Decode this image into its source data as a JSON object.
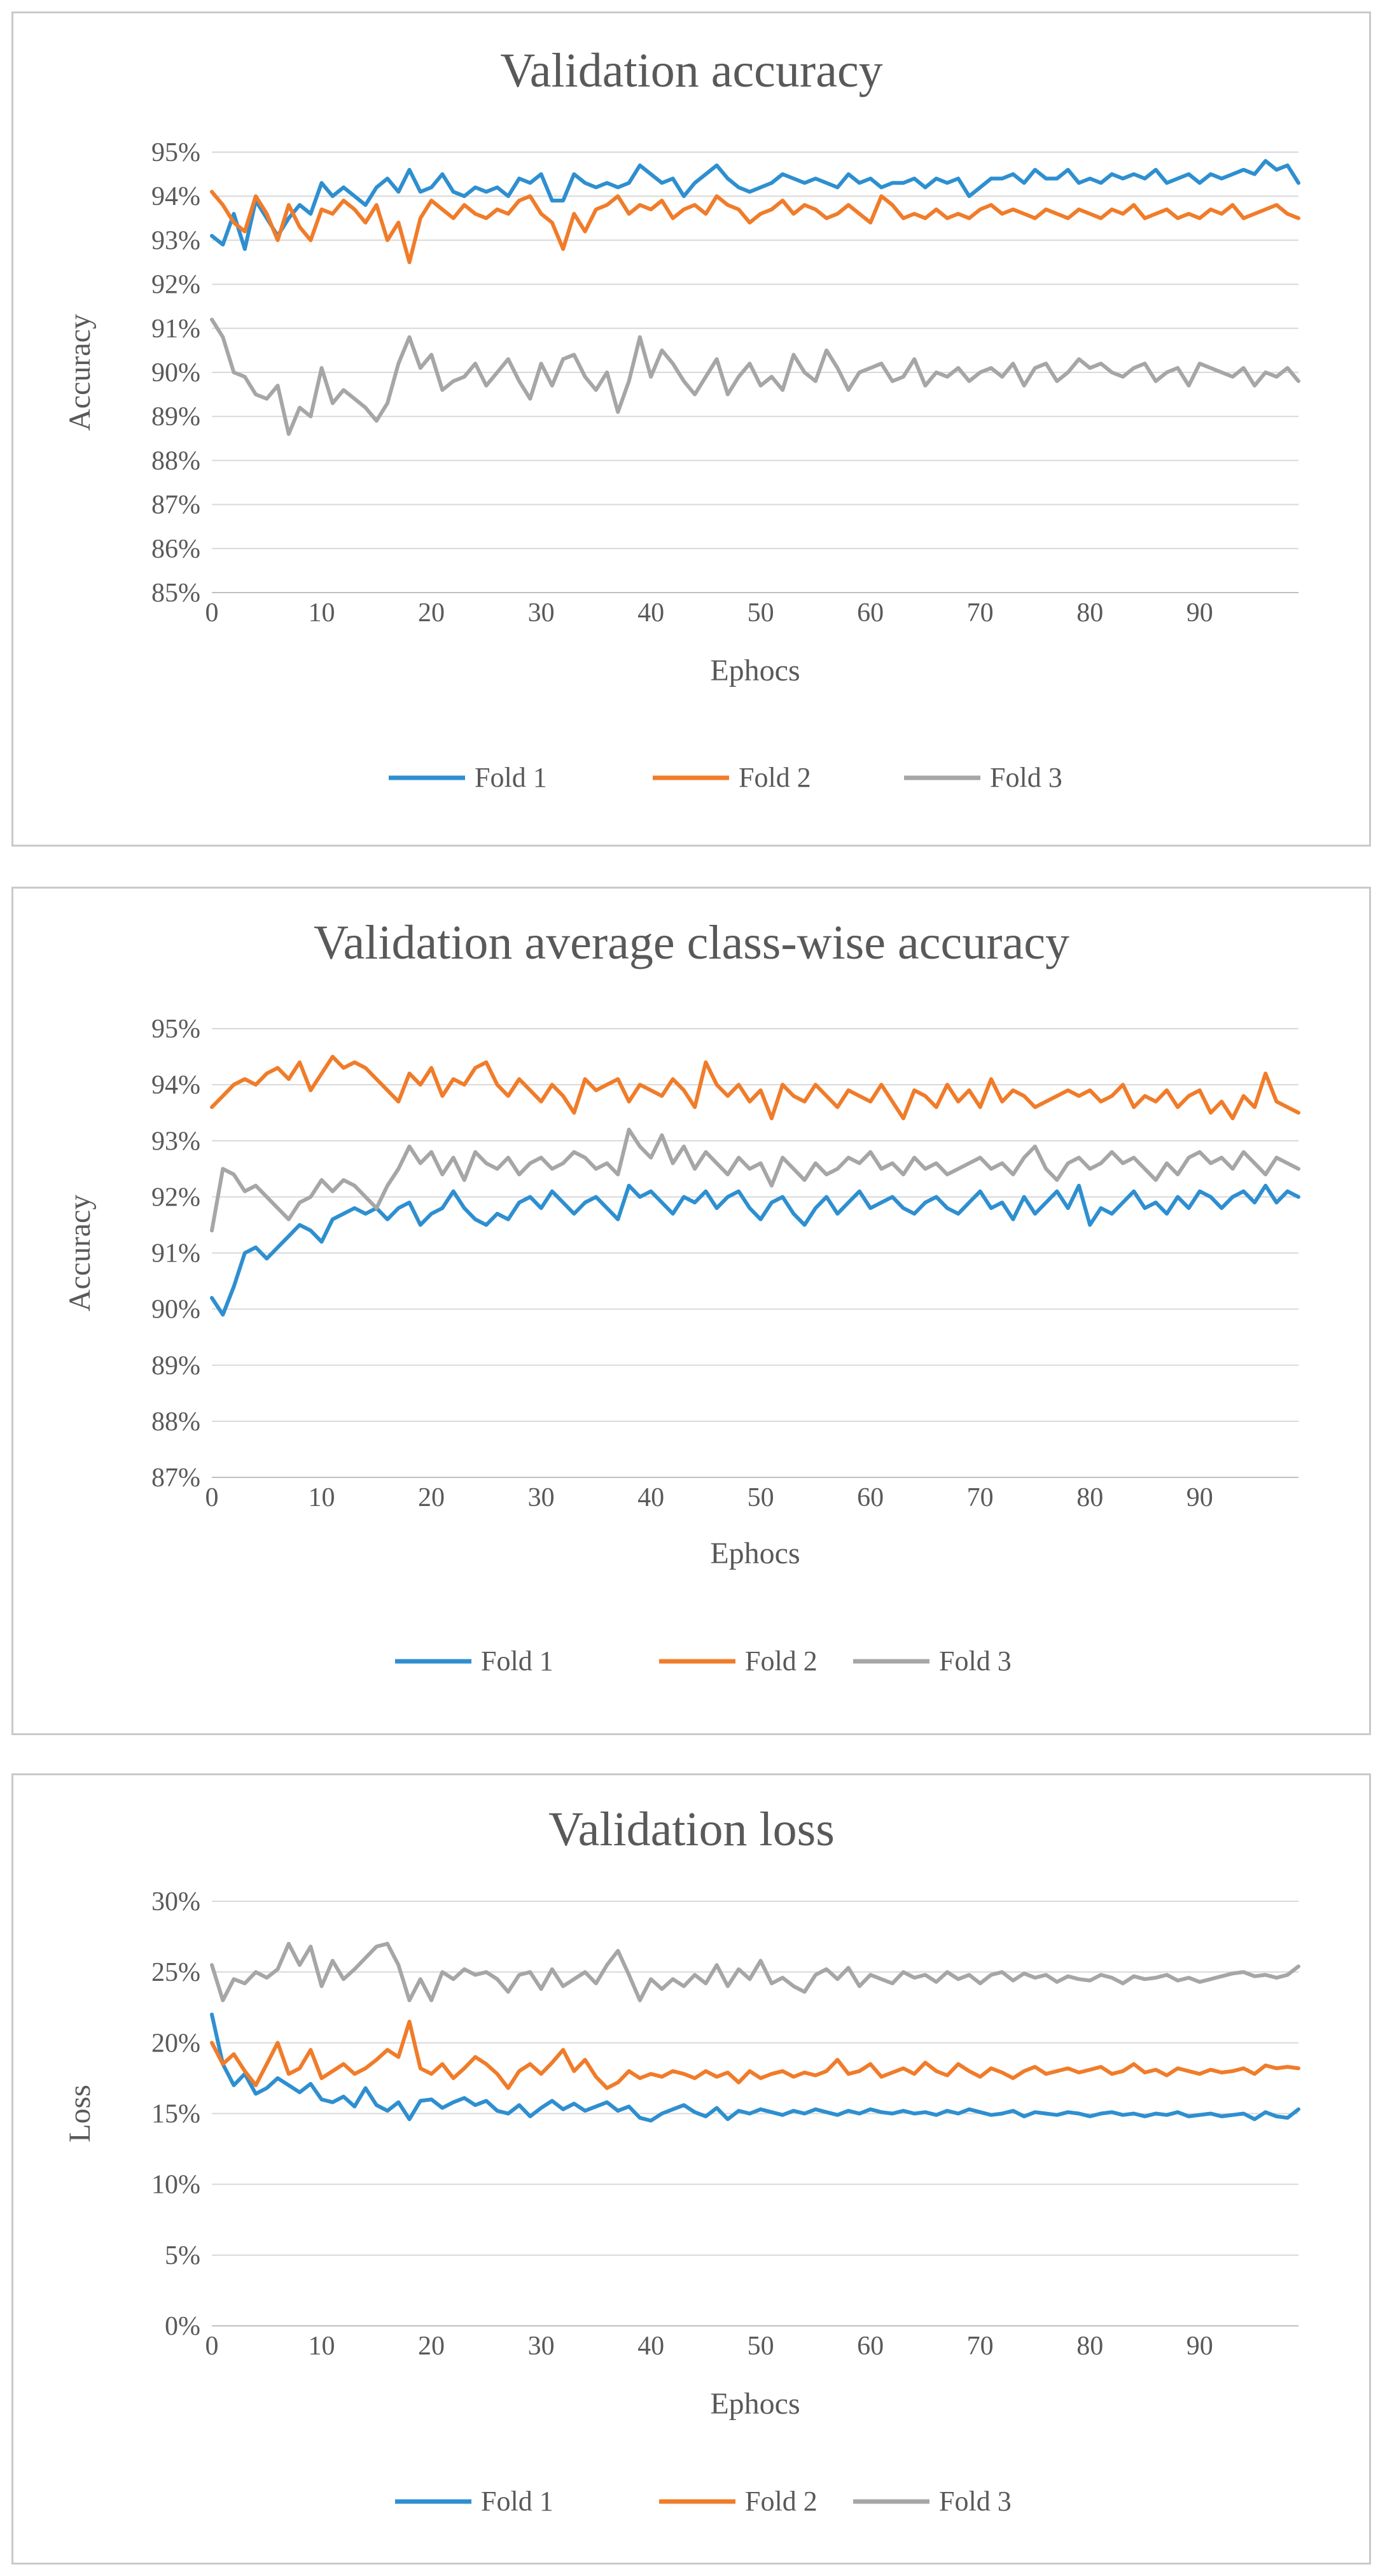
{
  "colors": {
    "fold1": "#2E8FD0",
    "fold2": "#F07C2A",
    "fold3": "#A6A6A6",
    "text": "#595959",
    "grid": "#d9d9d9"
  },
  "chart_data": [
    {
      "type": "line",
      "title": "Validation accuracy",
      "xlabel": "Ephocs",
      "ylabel": "Accuracy",
      "xlim": [
        0,
        99
      ],
      "ylim": [
        85,
        95
      ],
      "xticks": [
        "0",
        "10",
        "20",
        "30",
        "40",
        "50",
        "60",
        "70",
        "80",
        "90"
      ],
      "yticks": [
        "85%",
        "86%",
        "87%",
        "88%",
        "89%",
        "90%",
        "91%",
        "92%",
        "93%",
        "94%",
        "95%"
      ],
      "legend_position": "bottom",
      "series": [
        {
          "name": "Fold 1",
          "values": [
            93.1,
            92.9,
            93.6,
            92.8,
            93.9,
            93.5,
            93.1,
            93.5,
            93.8,
            93.6,
            94.3,
            94.0,
            94.2,
            94.0,
            93.8,
            94.2,
            94.4,
            94.1,
            94.6,
            94.1,
            94.2,
            94.5,
            94.1,
            94.0,
            94.2,
            94.1,
            94.2,
            94.0,
            94.4,
            94.3,
            94.5,
            93.9,
            93.9,
            94.5,
            94.3,
            94.2,
            94.3,
            94.2,
            94.3,
            94.7,
            94.5,
            94.3,
            94.4,
            94.0,
            94.3,
            94.5,
            94.7,
            94.4,
            94.2,
            94.1,
            94.2,
            94.3,
            94.5,
            94.4,
            94.3,
            94.4,
            94.3,
            94.2,
            94.5,
            94.3,
            94.4,
            94.2,
            94.3,
            94.3,
            94.4,
            94.2,
            94.4,
            94.3,
            94.4,
            94.0,
            94.2,
            94.4,
            94.4,
            94.5,
            94.3,
            94.6,
            94.4,
            94.4,
            94.6,
            94.3,
            94.4,
            94.3,
            94.5,
            94.4,
            94.5,
            94.4,
            94.6,
            94.3,
            94.4,
            94.5,
            94.3,
            94.5,
            94.4,
            94.5,
            94.6,
            94.5,
            94.8,
            94.6,
            94.7,
            94.3
          ]
        },
        {
          "name": "Fold 2",
          "values": [
            94.1,
            93.8,
            93.4,
            93.2,
            94.0,
            93.6,
            93.0,
            93.8,
            93.3,
            93.0,
            93.7,
            93.6,
            93.9,
            93.7,
            93.4,
            93.8,
            93.0,
            93.4,
            92.5,
            93.5,
            93.9,
            93.7,
            93.5,
            93.8,
            93.6,
            93.5,
            93.7,
            93.6,
            93.9,
            94.0,
            93.6,
            93.4,
            92.8,
            93.6,
            93.2,
            93.7,
            93.8,
            94.0,
            93.6,
            93.8,
            93.7,
            93.9,
            93.5,
            93.7,
            93.8,
            93.6,
            94.0,
            93.8,
            93.7,
            93.4,
            93.6,
            93.7,
            93.9,
            93.6,
            93.8,
            93.7,
            93.5,
            93.6,
            93.8,
            93.6,
            93.4,
            94.0,
            93.8,
            93.5,
            93.6,
            93.5,
            93.7,
            93.5,
            93.6,
            93.5,
            93.7,
            93.8,
            93.6,
            93.7,
            93.6,
            93.5,
            93.7,
            93.6,
            93.5,
            93.7,
            93.6,
            93.5,
            93.7,
            93.6,
            93.8,
            93.5,
            93.6,
            93.7,
            93.5,
            93.6,
            93.5,
            93.7,
            93.6,
            93.8,
            93.5,
            93.6,
            93.7,
            93.8,
            93.6,
            93.5
          ]
        },
        {
          "name": "Fold 3",
          "values": [
            91.2,
            90.8,
            90.0,
            89.9,
            89.5,
            89.4,
            89.7,
            88.6,
            89.2,
            89.0,
            90.1,
            89.3,
            89.6,
            89.4,
            89.2,
            88.9,
            89.3,
            90.2,
            90.8,
            90.1,
            90.4,
            89.6,
            89.8,
            89.9,
            90.2,
            89.7,
            90.0,
            90.3,
            89.8,
            89.4,
            90.2,
            89.7,
            90.3,
            90.4,
            89.9,
            89.6,
            90.0,
            89.1,
            89.8,
            90.8,
            89.9,
            90.5,
            90.2,
            89.8,
            89.5,
            89.9,
            90.3,
            89.5,
            89.9,
            90.2,
            89.7,
            89.9,
            89.6,
            90.4,
            90.0,
            89.8,
            90.5,
            90.1,
            89.6,
            90.0,
            90.1,
            90.2,
            89.8,
            89.9,
            90.3,
            89.7,
            90.0,
            89.9,
            90.1,
            89.8,
            90.0,
            90.1,
            89.9,
            90.2,
            89.7,
            90.1,
            90.2,
            89.8,
            90.0,
            90.3,
            90.1,
            90.2,
            90.0,
            89.9,
            90.1,
            90.2,
            89.8,
            90.0,
            90.1,
            89.7,
            90.2,
            90.1,
            90.0,
            89.9,
            90.1,
            89.7,
            90.0,
            89.9,
            90.1,
            89.8
          ]
        }
      ]
    },
    {
      "type": "line",
      "title": "Validation average class-wise accuracy",
      "xlabel": "Ephocs",
      "ylabel": "Accuracy",
      "xlim": [
        0,
        99
      ],
      "ylim": [
        87,
        95
      ],
      "xticks": [
        "0",
        "10",
        "20",
        "30",
        "40",
        "50",
        "60",
        "70",
        "80",
        "90"
      ],
      "yticks": [
        "87%",
        "88%",
        "89%",
        "90%",
        "91%",
        "92%",
        "93%",
        "94%",
        "95%"
      ],
      "legend_position": "bottom",
      "series": [
        {
          "name": "Fold 1",
          "values": [
            90.2,
            89.9,
            90.4,
            91.0,
            91.1,
            90.9,
            91.1,
            91.3,
            91.5,
            91.4,
            91.2,
            91.6,
            91.7,
            91.8,
            91.7,
            91.8,
            91.6,
            91.8,
            91.9,
            91.5,
            91.7,
            91.8,
            92.1,
            91.8,
            91.6,
            91.5,
            91.7,
            91.6,
            91.9,
            92.0,
            91.8,
            92.1,
            91.9,
            91.7,
            91.9,
            92.0,
            91.8,
            91.6,
            92.2,
            92.0,
            92.1,
            91.9,
            91.7,
            92.0,
            91.9,
            92.1,
            91.8,
            92.0,
            92.1,
            91.8,
            91.6,
            91.9,
            92.0,
            91.7,
            91.5,
            91.8,
            92.0,
            91.7,
            91.9,
            92.1,
            91.8,
            91.9,
            92.0,
            91.8,
            91.7,
            91.9,
            92.0,
            91.8,
            91.7,
            91.9,
            92.1,
            91.8,
            91.9,
            91.6,
            92.0,
            91.7,
            91.9,
            92.1,
            91.8,
            92.2,
            91.5,
            91.8,
            91.7,
            91.9,
            92.1,
            91.8,
            91.9,
            91.7,
            92.0,
            91.8,
            92.1,
            92.0,
            91.8,
            92.0,
            92.1,
            91.9,
            92.2,
            91.9,
            92.1,
            92.0
          ]
        },
        {
          "name": "Fold 2",
          "values": [
            93.6,
            93.8,
            94.0,
            94.1,
            94.0,
            94.2,
            94.3,
            94.1,
            94.4,
            93.9,
            94.2,
            94.5,
            94.3,
            94.4,
            94.3,
            94.1,
            93.9,
            93.7,
            94.2,
            94.0,
            94.3,
            93.8,
            94.1,
            94.0,
            94.3,
            94.4,
            94.0,
            93.8,
            94.1,
            93.9,
            93.7,
            94.0,
            93.8,
            93.5,
            94.1,
            93.9,
            94.0,
            94.1,
            93.7,
            94.0,
            93.9,
            93.8,
            94.1,
            93.9,
            93.6,
            94.4,
            94.0,
            93.8,
            94.0,
            93.7,
            93.9,
            93.4,
            94.0,
            93.8,
            93.7,
            94.0,
            93.8,
            93.6,
            93.9,
            93.8,
            93.7,
            94.0,
            93.7,
            93.4,
            93.9,
            93.8,
            93.6,
            94.0,
            93.7,
            93.9,
            93.6,
            94.1,
            93.7,
            93.9,
            93.8,
            93.6,
            93.7,
            93.8,
            93.9,
            93.8,
            93.9,
            93.7,
            93.8,
            94.0,
            93.6,
            93.8,
            93.7,
            93.9,
            93.6,
            93.8,
            93.9,
            93.5,
            93.7,
            93.4,
            93.8,
            93.6,
            94.2,
            93.7,
            93.6,
            93.5
          ]
        },
        {
          "name": "Fold 3",
          "values": [
            91.4,
            92.5,
            92.4,
            92.1,
            92.2,
            92.0,
            91.8,
            91.6,
            91.9,
            92.0,
            92.3,
            92.1,
            92.3,
            92.2,
            92.0,
            91.8,
            92.2,
            92.5,
            92.9,
            92.6,
            92.8,
            92.4,
            92.7,
            92.3,
            92.8,
            92.6,
            92.5,
            92.7,
            92.4,
            92.6,
            92.7,
            92.5,
            92.6,
            92.8,
            92.7,
            92.5,
            92.6,
            92.4,
            93.2,
            92.9,
            92.7,
            93.1,
            92.6,
            92.9,
            92.5,
            92.8,
            92.6,
            92.4,
            92.7,
            92.5,
            92.6,
            92.2,
            92.7,
            92.5,
            92.3,
            92.6,
            92.4,
            92.5,
            92.7,
            92.6,
            92.8,
            92.5,
            92.6,
            92.4,
            92.7,
            92.5,
            92.6,
            92.4,
            92.5,
            92.6,
            92.7,
            92.5,
            92.6,
            92.4,
            92.7,
            92.9,
            92.5,
            92.3,
            92.6,
            92.7,
            92.5,
            92.6,
            92.8,
            92.6,
            92.7,
            92.5,
            92.3,
            92.6,
            92.4,
            92.7,
            92.8,
            92.6,
            92.7,
            92.5,
            92.8,
            92.6,
            92.4,
            92.7,
            92.6,
            92.5
          ]
        }
      ]
    },
    {
      "type": "line",
      "title": "Validation loss",
      "xlabel": "Ephocs",
      "ylabel": "Loss",
      "xlim": [
        0,
        99
      ],
      "ylim": [
        0,
        30
      ],
      "xticks": [
        "0",
        "10",
        "20",
        "30",
        "40",
        "50",
        "60",
        "70",
        "80",
        "90"
      ],
      "yticks": [
        "0%",
        "5%",
        "10%",
        "15%",
        "20%",
        "25%",
        "30%"
      ],
      "legend_position": "bottom",
      "series": [
        {
          "name": "Fold 1",
          "values": [
            22.0,
            18.5,
            17.0,
            17.8,
            16.4,
            16.8,
            17.5,
            17.0,
            16.5,
            17.1,
            16.0,
            15.8,
            16.2,
            15.5,
            16.8,
            15.6,
            15.2,
            15.8,
            14.6,
            15.9,
            16.0,
            15.4,
            15.8,
            16.1,
            15.6,
            15.9,
            15.2,
            15.0,
            15.6,
            14.8,
            15.4,
            15.9,
            15.3,
            15.7,
            15.2,
            15.5,
            15.8,
            15.2,
            15.5,
            14.7,
            14.5,
            15.0,
            15.3,
            15.6,
            15.1,
            14.8,
            15.4,
            14.6,
            15.2,
            15.0,
            15.3,
            15.1,
            14.9,
            15.2,
            15.0,
            15.3,
            15.1,
            14.9,
            15.2,
            15.0,
            15.3,
            15.1,
            15.0,
            15.2,
            15.0,
            15.1,
            14.9,
            15.2,
            15.0,
            15.3,
            15.1,
            14.9,
            15.0,
            15.2,
            14.8,
            15.1,
            15.0,
            14.9,
            15.1,
            15.0,
            14.8,
            15.0,
            15.1,
            14.9,
            15.0,
            14.8,
            15.0,
            14.9,
            15.1,
            14.8,
            14.9,
            15.0,
            14.8,
            14.9,
            15.0,
            14.6,
            15.1,
            14.8,
            14.7,
            15.3
          ]
        },
        {
          "name": "Fold 2",
          "values": [
            20.0,
            18.5,
            19.2,
            18.0,
            17.0,
            18.5,
            20.0,
            17.8,
            18.2,
            19.5,
            17.5,
            18.0,
            18.5,
            17.8,
            18.2,
            18.8,
            19.5,
            19.0,
            21.5,
            18.2,
            17.8,
            18.5,
            17.5,
            18.2,
            19.0,
            18.5,
            17.8,
            16.8,
            18.0,
            18.5,
            17.8,
            18.6,
            19.5,
            18.0,
            18.8,
            17.6,
            16.8,
            17.2,
            18.0,
            17.5,
            17.8,
            17.6,
            18.0,
            17.8,
            17.5,
            18.0,
            17.6,
            17.9,
            17.2,
            18.0,
            17.5,
            17.8,
            18.0,
            17.6,
            17.9,
            17.7,
            18.0,
            18.8,
            17.8,
            18.0,
            18.5,
            17.6,
            17.9,
            18.2,
            17.8,
            18.6,
            18.0,
            17.7,
            18.5,
            18.0,
            17.6,
            18.2,
            17.9,
            17.5,
            18.0,
            18.3,
            17.8,
            18.0,
            18.2,
            17.9,
            18.1,
            18.3,
            17.8,
            18.0,
            18.5,
            17.9,
            18.1,
            17.7,
            18.2,
            18.0,
            17.8,
            18.1,
            17.9,
            18.0,
            18.2,
            17.8,
            18.4,
            18.2,
            18.3,
            18.2
          ]
        },
        {
          "name": "Fold 3",
          "values": [
            25.5,
            23.0,
            24.5,
            24.2,
            25.0,
            24.6,
            25.2,
            27.0,
            25.5,
            26.8,
            24.0,
            25.8,
            24.5,
            25.2,
            26.0,
            26.8,
            27.0,
            25.5,
            23.0,
            24.5,
            23.0,
            25.0,
            24.5,
            25.2,
            24.8,
            25.0,
            24.5,
            23.6,
            24.8,
            25.0,
            23.8,
            25.2,
            24.0,
            24.5,
            25.0,
            24.2,
            25.5,
            26.5,
            24.8,
            23.0,
            24.5,
            23.8,
            24.5,
            24.0,
            24.8,
            24.2,
            25.5,
            24.0,
            25.2,
            24.5,
            25.8,
            24.2,
            24.6,
            24.0,
            23.6,
            24.8,
            25.2,
            24.5,
            25.3,
            24.0,
            24.8,
            24.5,
            24.2,
            25.0,
            24.6,
            24.8,
            24.3,
            25.0,
            24.5,
            24.8,
            24.2,
            24.8,
            25.0,
            24.4,
            24.9,
            24.6,
            24.8,
            24.3,
            24.7,
            24.5,
            24.4,
            24.8,
            24.6,
            24.2,
            24.7,
            24.5,
            24.6,
            24.8,
            24.4,
            24.6,
            24.3,
            24.5,
            24.7,
            24.9,
            25.0,
            24.7,
            24.8,
            24.6,
            24.8,
            25.4
          ]
        }
      ]
    }
  ]
}
